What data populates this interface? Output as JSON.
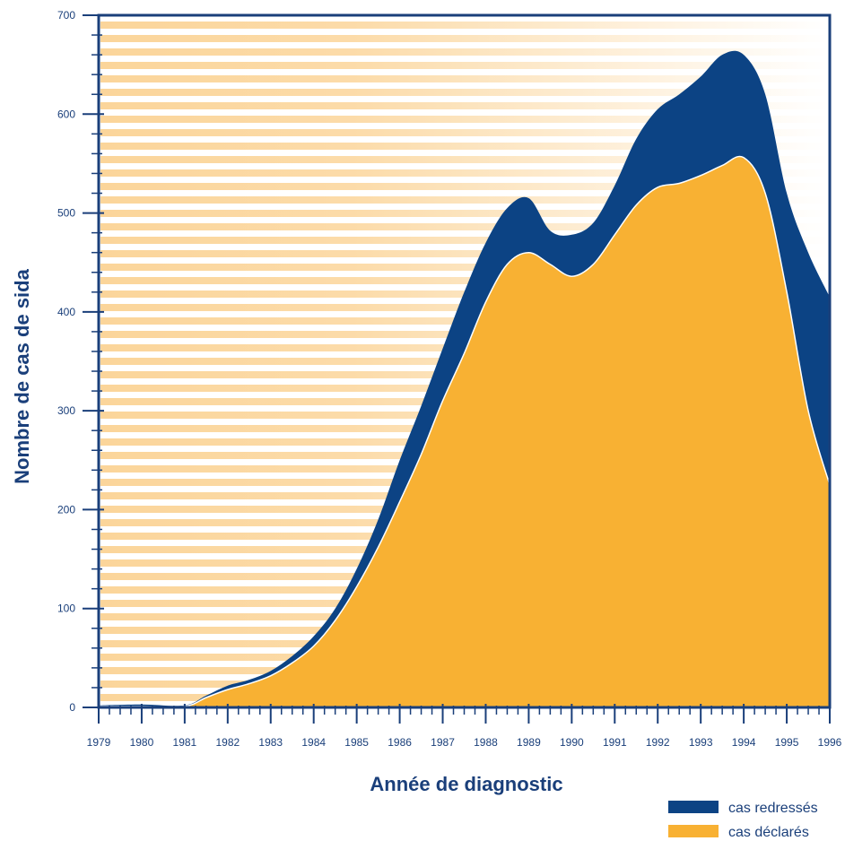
{
  "chart_data": {
    "type": "area",
    "title": "",
    "xlabel": "Année de diagnostic",
    "ylabel": "Nombre de cas de sida",
    "xlim": [
      1979,
      1996
    ],
    "ylim": [
      0,
      700
    ],
    "x_ticks": [
      "1979",
      "1980",
      "1981",
      "1982",
      "1983",
      "1984",
      "1985",
      "1986",
      "1987",
      "1988",
      "1989",
      "1990",
      "1991",
      "1992",
      "1993",
      "1994",
      "1995",
      "1996"
    ],
    "y_ticks": [
      "0",
      "100",
      "200",
      "300",
      "400",
      "500",
      "600",
      "700"
    ],
    "stacked": true,
    "legend_position": "bottom-right",
    "grid": false,
    "x": [
      1979,
      1980,
      1981,
      1981.5,
      1982,
      1982.5,
      1983,
      1983.5,
      1984,
      1984.5,
      1985,
      1985.5,
      1986,
      1986.5,
      1987,
      1987.5,
      1988,
      1988.5,
      1989,
      1989.5,
      1990,
      1990.5,
      1991,
      1991.5,
      1992,
      1992.5,
      1993,
      1993.5,
      1994,
      1994.5,
      1995,
      1995.5,
      1996
    ],
    "series": [
      {
        "name": "cas déclarés",
        "color": "#f8b133",
        "values": [
          1,
          1,
          1,
          10,
          18,
          24,
          32,
          45,
          62,
          88,
          122,
          162,
          208,
          256,
          310,
          358,
          410,
          448,
          460,
          448,
          436,
          448,
          478,
          508,
          526,
          530,
          538,
          548,
          556,
          520,
          420,
          300,
          225
        ]
      },
      {
        "name": "cas redressés",
        "color": "#0c4384",
        "totals": [
          2,
          3,
          2,
          12,
          22,
          28,
          37,
          52,
          72,
          100,
          140,
          190,
          250,
          305,
          363,
          420,
          470,
          505,
          515,
          482,
          478,
          490,
          528,
          575,
          605,
          620,
          638,
          660,
          660,
          620,
          520,
          460,
          415
        ]
      }
    ]
  },
  "legend": {
    "items": [
      {
        "label": "cas redressés",
        "color": "#0c4384"
      },
      {
        "label": "cas déclarés",
        "color": "#f8b133"
      }
    ]
  }
}
